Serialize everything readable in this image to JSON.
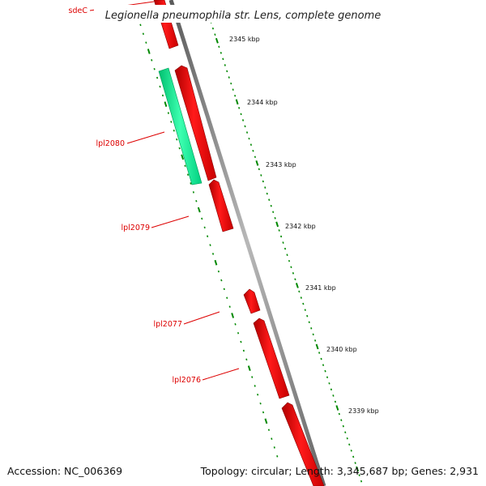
{
  "title": "Legionella pneumophila str. Lens, complete genome",
  "footer": {
    "accession": "Accession: NC_006369",
    "summary": "Topology: circular; Length: 3,345,687 bp; Genes: 2,931"
  },
  "scale_labels": [
    "2345 kbp",
    "2344 kbp",
    "2343 kbp",
    "2342 kbp",
    "2341 kbp",
    "2340 kbp",
    "2339 kbp"
  ],
  "gene_labels": [
    "sdeC",
    "lpl2080",
    "lpl2079",
    "lpl2077",
    "lpl2076"
  ],
  "colors": {
    "forward_cds": "#ff0000",
    "reverse_cds": "#00ff99",
    "backbone": "#888888",
    "tick_marks": "#008800",
    "gene_label": "#dd0000"
  }
}
